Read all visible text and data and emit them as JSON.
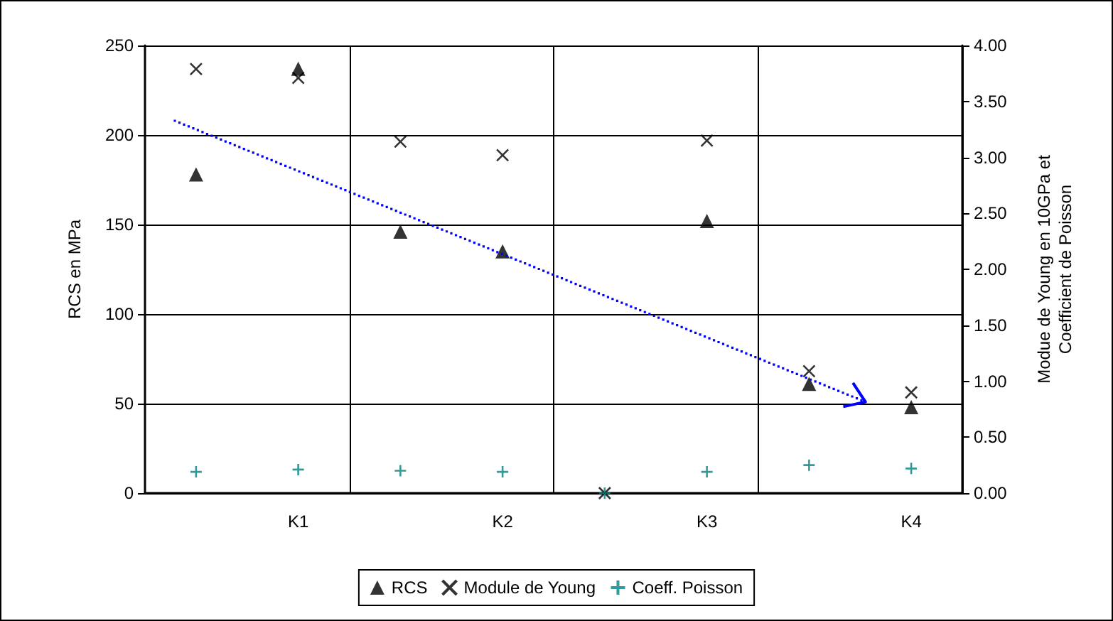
{
  "chart_data": {
    "type": "scatter",
    "ylabel": "RCS en MPa",
    "y2label": "Modue de Young en 10GPa et\nCoefficient de Poisson",
    "categories": [
      null,
      "K1",
      null,
      "K2",
      null,
      "K3",
      null,
      "K4"
    ],
    "ylim": [
      0,
      250
    ],
    "yticks": [
      0,
      50,
      100,
      150,
      200,
      250
    ],
    "y2lim": [
      0,
      4
    ],
    "y2ticks": [
      {
        "value": 0,
        "label": "0.00"
      },
      {
        "value": 0.5,
        "label": "0.50"
      },
      {
        "value": 1,
        "label": "1.00"
      },
      {
        "value": 1.5,
        "label": "1.50"
      },
      {
        "value": 2,
        "label": "2.00"
      },
      {
        "value": 2.5,
        "label": "2.50"
      },
      {
        "value": 3,
        "label": "3.00"
      },
      {
        "value": 3.5,
        "label": "3.50"
      },
      {
        "value": 4,
        "label": "4.00"
      }
    ],
    "grid": true,
    "legend": "bottom",
    "series": [
      {
        "name": "RCS",
        "color": "#000000",
        "marker": "triangle",
        "values": [
          178,
          237,
          146,
          135,
          null,
          152,
          61,
          48
        ]
      },
      {
        "name": "Module de Young",
        "color": "#000000",
        "marker": "cross",
        "axis": "y2",
        "values": [
          3.79,
          3.71,
          3.14,
          3.02,
          0,
          3.15,
          1.09,
          0.9
        ]
      },
      {
        "name": "Coeff. Poisson",
        "color": "#008080",
        "marker": "plus",
        "axis": "y2",
        "values": [
          0.19,
          0.21,
          0.2,
          0.19,
          0,
          0.19,
          0.25,
          0.22
        ]
      }
    ]
  }
}
